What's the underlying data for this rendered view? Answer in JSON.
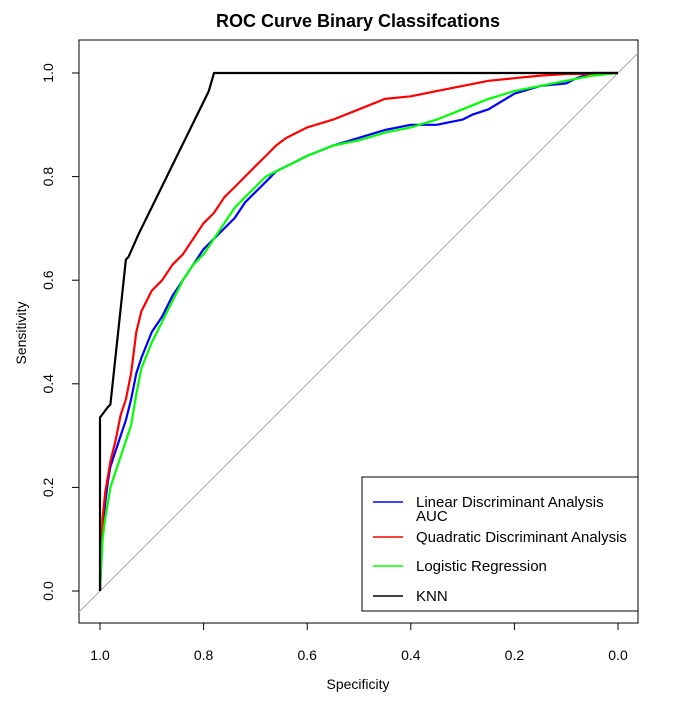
{
  "chart_data": {
    "type": "line",
    "title": "ROC Curve Binary Classifcations",
    "xlabel": "Specificity",
    "ylabel": "Sensitivity",
    "xlim": [
      1.0,
      0.0
    ],
    "ylim": [
      0.0,
      1.0
    ],
    "x_reversed": true,
    "grid": false,
    "legend_position": "bottom-right",
    "x_ticks": [
      "1.0",
      "0.8",
      "0.6",
      "0.4",
      "0.2",
      "0.0"
    ],
    "x_tick_values": [
      1.0,
      0.8,
      0.6,
      0.4,
      0.2,
      0.0
    ],
    "y_ticks": [
      "0.0",
      "0.2",
      "0.4",
      "0.6",
      "0.8",
      "1.0"
    ],
    "y_tick_values": [
      0.0,
      0.2,
      0.4,
      0.6,
      0.8,
      1.0
    ],
    "reference_line": {
      "from": [
        1.0,
        0.0
      ],
      "to": [
        0.0,
        1.0
      ],
      "color": "#aaaaaa"
    },
    "legend_extra_label": "AUC",
    "series": [
      {
        "name": "Linear Discriminant Analysis",
        "color": "#0000ff",
        "x": [
          1.0,
          0.995,
          0.99,
          0.985,
          0.98,
          0.97,
          0.96,
          0.95,
          0.94,
          0.93,
          0.92,
          0.9,
          0.88,
          0.86,
          0.84,
          0.82,
          0.8,
          0.78,
          0.76,
          0.74,
          0.72,
          0.7,
          0.68,
          0.66,
          0.64,
          0.62,
          0.6,
          0.55,
          0.5,
          0.45,
          0.4,
          0.35,
          0.3,
          0.28,
          0.25,
          0.2,
          0.15,
          0.1,
          0.08,
          0.05,
          0.0
        ],
        "y": [
          0.0,
          0.12,
          0.17,
          0.21,
          0.24,
          0.27,
          0.3,
          0.33,
          0.37,
          0.42,
          0.45,
          0.5,
          0.53,
          0.57,
          0.6,
          0.63,
          0.66,
          0.68,
          0.7,
          0.72,
          0.75,
          0.77,
          0.79,
          0.81,
          0.82,
          0.83,
          0.84,
          0.86,
          0.875,
          0.89,
          0.9,
          0.9,
          0.91,
          0.92,
          0.93,
          0.96,
          0.975,
          0.98,
          0.99,
          1.0,
          1.0
        ]
      },
      {
        "name": "Quadratic Discriminant Analysis",
        "color": "#ff0000",
        "x": [
          1.0,
          0.995,
          0.99,
          0.985,
          0.98,
          0.97,
          0.96,
          0.95,
          0.94,
          0.93,
          0.92,
          0.9,
          0.88,
          0.86,
          0.84,
          0.82,
          0.8,
          0.78,
          0.76,
          0.74,
          0.72,
          0.7,
          0.68,
          0.66,
          0.64,
          0.62,
          0.6,
          0.55,
          0.5,
          0.45,
          0.4,
          0.35,
          0.3,
          0.25,
          0.2,
          0.15,
          0.1,
          0.05,
          0.0
        ],
        "y": [
          0.0,
          0.14,
          0.19,
          0.22,
          0.25,
          0.29,
          0.34,
          0.37,
          0.42,
          0.5,
          0.54,
          0.58,
          0.6,
          0.63,
          0.65,
          0.68,
          0.71,
          0.73,
          0.76,
          0.78,
          0.8,
          0.82,
          0.84,
          0.86,
          0.875,
          0.885,
          0.895,
          0.91,
          0.93,
          0.95,
          0.955,
          0.965,
          0.975,
          0.985,
          0.99,
          0.995,
          0.998,
          0.998,
          1.0
        ]
      },
      {
        "name": "Logistic Regression",
        "color": "#00ff00",
        "x": [
          1.0,
          0.995,
          0.99,
          0.985,
          0.98,
          0.97,
          0.96,
          0.95,
          0.94,
          0.93,
          0.92,
          0.9,
          0.88,
          0.86,
          0.84,
          0.82,
          0.8,
          0.78,
          0.76,
          0.74,
          0.72,
          0.7,
          0.68,
          0.66,
          0.64,
          0.62,
          0.6,
          0.55,
          0.5,
          0.45,
          0.4,
          0.35,
          0.3,
          0.25,
          0.2,
          0.15,
          0.1,
          0.05,
          0.0
        ],
        "y": [
          0.0,
          0.1,
          0.14,
          0.17,
          0.2,
          0.23,
          0.26,
          0.29,
          0.32,
          0.38,
          0.43,
          0.48,
          0.52,
          0.56,
          0.6,
          0.63,
          0.65,
          0.68,
          0.71,
          0.74,
          0.76,
          0.78,
          0.8,
          0.81,
          0.82,
          0.83,
          0.84,
          0.86,
          0.87,
          0.885,
          0.895,
          0.91,
          0.93,
          0.95,
          0.965,
          0.975,
          0.985,
          0.995,
          1.0
        ]
      },
      {
        "name": "KNN",
        "color": "#000000",
        "x": [
          1.0,
          1.0,
          0.985,
          0.98,
          0.95,
          0.945,
          0.925,
          0.92,
          0.79,
          0.78,
          0.0
        ],
        "y": [
          0.0,
          0.335,
          0.355,
          0.36,
          0.64,
          0.645,
          0.69,
          0.7,
          0.965,
          1.0,
          1.0
        ]
      }
    ]
  }
}
